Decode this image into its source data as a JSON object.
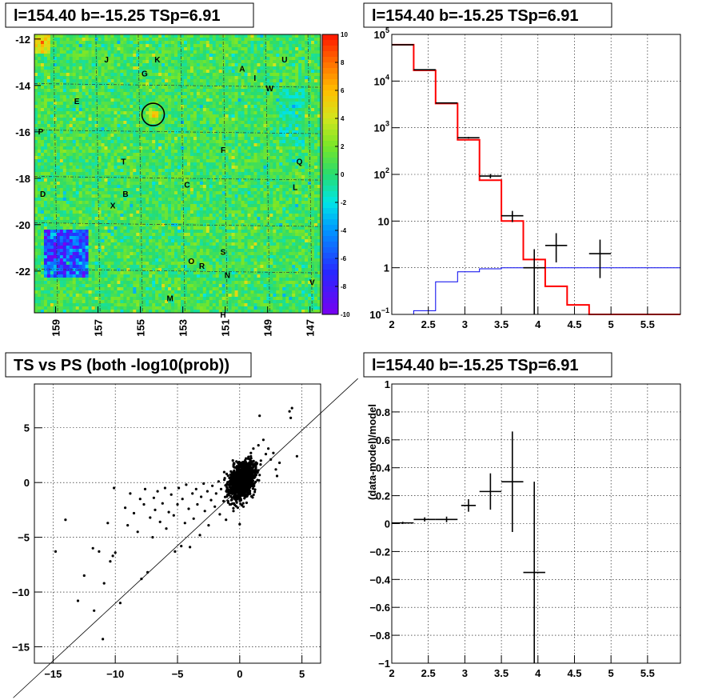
{
  "chart_data": [
    {
      "type": "heatmap",
      "title": "l=154.40 b=-15.25 TSp=6.91",
      "xlim": [
        160,
        146.5
      ],
      "ylim": [
        -23.8,
        -11.8
      ],
      "x_ticks": [
        "159",
        "157",
        "155",
        "153",
        "151",
        "149",
        "147"
      ],
      "y_ticks": [
        "-12",
        "-14",
        "-16",
        "-18",
        "-20",
        "-22"
      ],
      "colorbar_ticks": [
        "10",
        "8",
        "6",
        "4",
        "2",
        "0",
        "-2",
        "-4",
        "-6",
        "-8",
        "-10"
      ],
      "colorbar_range": [
        -10,
        10
      ],
      "marked_source": {
        "l": 154.4,
        "b": -15.25
      },
      "labels": [
        {
          "text": "J",
          "l": 156.6,
          "b": -12.9
        },
        {
          "text": "K",
          "l": 154.2,
          "b": -12.9
        },
        {
          "text": "G",
          "l": 154.8,
          "b": -13.5
        },
        {
          "text": "A",
          "l": 150.2,
          "b": -13.3
        },
        {
          "text": "U",
          "l": 148.2,
          "b": -12.9
        },
        {
          "text": "I",
          "l": 149.6,
          "b": -13.7
        },
        {
          "text": "W",
          "l": 148.9,
          "b": -14.15
        },
        {
          "text": "E",
          "l": 158.0,
          "b": -14.7
        },
        {
          "text": "P",
          "l": 159.7,
          "b": -16.0
        },
        {
          "text": "F",
          "l": 151.1,
          "b": -16.8
        },
        {
          "text": "Q",
          "l": 147.5,
          "b": -17.3
        },
        {
          "text": "T",
          "l": 155.8,
          "b": -17.3
        },
        {
          "text": "C",
          "l": 152.8,
          "b": -18.3
        },
        {
          "text": "L",
          "l": 147.7,
          "b": -18.4
        },
        {
          "text": "D",
          "l": 159.6,
          "b": -18.7
        },
        {
          "text": "B",
          "l": 155.7,
          "b": -18.7
        },
        {
          "text": "X",
          "l": 156.3,
          "b": -19.2
        },
        {
          "text": "S",
          "l": 151.1,
          "b": -21.2
        },
        {
          "text": "O",
          "l": 152.6,
          "b": -21.6
        },
        {
          "text": "R",
          "l": 152.1,
          "b": -21.8
        },
        {
          "text": "N",
          "l": 150.9,
          "b": -22.2
        },
        {
          "text": "V",
          "l": 146.9,
          "b": -22.5
        },
        {
          "text": "M",
          "l": 153.6,
          "b": -23.2
        },
        {
          "text": "H",
          "l": 151.1,
          "b": -23.9
        }
      ]
    },
    {
      "type": "line",
      "title": "l=154.40 b=-15.25 TSp=6.91",
      "xlim": [
        2,
        5.95
      ],
      "ylim": [
        0.1,
        100000
      ],
      "yscale": "log",
      "x_ticks": [
        "2",
        "2.5",
        "3",
        "3.5",
        "4",
        "4.5",
        "5",
        "5.5"
      ],
      "y_ticks": [
        {
          "value": 100000,
          "base": "10",
          "exp": "5"
        },
        {
          "value": 10000,
          "base": "10",
          "exp": "4"
        },
        {
          "value": 1000,
          "base": "10",
          "exp": "3"
        },
        {
          "value": 100,
          "base": "10",
          "exp": "2"
        },
        {
          "value": 10,
          "base": "10",
          "exp": ""
        },
        {
          "value": 1,
          "base": "1",
          "exp": ""
        },
        {
          "value": 0.1,
          "base": "10",
          "exp": "−1"
        }
      ],
      "grid": true,
      "bin_edges": [
        2.0,
        2.3,
        2.6,
        2.9,
        3.2,
        3.5,
        3.8,
        4.1,
        4.4,
        4.7,
        5.0,
        5.3,
        5.6,
        5.95
      ],
      "model_red": [
        60000,
        17000,
        3300,
        550,
        75,
        10,
        1.5,
        0.4,
        0.16,
        0.1,
        0.1,
        0.1,
        0.1
      ],
      "model_blue": [
        0.1,
        0.12,
        0.5,
        0.82,
        0.95,
        1.0,
        1.0,
        1.0,
        1.0,
        1.0,
        1.0,
        1.0,
        1.0
      ],
      "data": [
        {
          "x": 2.15,
          "y": 60000,
          "xerr": 0.15,
          "ylo": 59500,
          "yhi": 60500
        },
        {
          "x": 2.45,
          "y": 17500,
          "xerr": 0.15,
          "ylo": 17300,
          "yhi": 17700
        },
        {
          "x": 2.75,
          "y": 3400,
          "xerr": 0.15,
          "ylo": 3340,
          "yhi": 3460
        },
        {
          "x": 3.05,
          "y": 610,
          "xerr": 0.15,
          "ylo": 585,
          "yhi": 635
        },
        {
          "x": 3.35,
          "y": 92,
          "xerr": 0.15,
          "ylo": 82,
          "yhi": 102
        },
        {
          "x": 3.65,
          "y": 13,
          "xerr": 0.15,
          "ylo": 9.5,
          "yhi": 16.5
        },
        {
          "x": 3.95,
          "y": 1.0,
          "xerr": 0.15,
          "ylo": 0.1,
          "yhi": 2.5
        },
        {
          "x": 4.25,
          "y": 3,
          "xerr": 0.15,
          "ylo": 1.3,
          "yhi": 5.5
        },
        {
          "x": 4.85,
          "y": 2,
          "xerr": 0.15,
          "ylo": 0.6,
          "yhi": 4.0
        }
      ]
    },
    {
      "type": "scatter",
      "title": "TS vs PS (both -log10(prob))",
      "xlim": [
        -16.5,
        6.5
      ],
      "ylim": [
        -16.5,
        9
      ],
      "x_ticks": [
        "−15",
        "−10",
        "−5",
        "0",
        "5"
      ],
      "y_ticks": [
        "5",
        "0",
        "−5",
        "−10",
        "−15"
      ],
      "grid": true,
      "reference_line": "y = x",
      "points": [
        [
          -14.8,
          -6.3
        ],
        [
          -14.0,
          -3.4
        ],
        [
          -13.0,
          -10.8
        ],
        [
          -12.5,
          -8.5
        ],
        [
          -11.8,
          -6.0
        ],
        [
          -11.7,
          -11.7
        ],
        [
          -11.3,
          -6.3
        ],
        [
          -11.0,
          -14.3
        ],
        [
          -10.9,
          -9.2
        ],
        [
          -10.6,
          -3.7
        ],
        [
          -10.4,
          -7.2
        ],
        [
          -10.2,
          -6.7
        ],
        [
          -10.0,
          -6.4
        ],
        [
          -10.1,
          -0.5
        ],
        [
          -9.6,
          -11.0
        ],
        [
          -9.2,
          -2.3
        ],
        [
          -9.0,
          -3.9
        ],
        [
          -8.8,
          -1.0
        ],
        [
          -8.5,
          -2.8
        ],
        [
          -8.2,
          -4.5
        ],
        [
          -8.0,
          -1.5
        ],
        [
          -7.9,
          -8.8
        ],
        [
          -7.7,
          -2.0
        ],
        [
          -7.6,
          -0.6
        ],
        [
          -7.4,
          -8.2
        ],
        [
          -7.2,
          -3.2
        ],
        [
          -7.0,
          -5.0
        ],
        [
          -6.9,
          -1.4
        ],
        [
          -6.8,
          -2.5
        ],
        [
          -6.6,
          -0.8
        ],
        [
          -6.4,
          -3.6
        ],
        [
          -6.2,
          -1.9
        ],
        [
          -6.0,
          -0.5
        ],
        [
          -5.9,
          -4.2
        ],
        [
          -5.7,
          -2.7
        ],
        [
          -5.5,
          -1.1
        ],
        [
          -5.3,
          -3.0
        ],
        [
          -5.2,
          -6.3
        ],
        [
          -5.0,
          -2.0
        ],
        [
          -4.9,
          -0.5
        ],
        [
          -4.7,
          -5.8
        ],
        [
          -4.6,
          -1.5
        ],
        [
          -4.4,
          -3.7
        ],
        [
          -4.3,
          -0.2
        ],
        [
          -4.1,
          -2.4
        ],
        [
          -4.0,
          -5.9
        ],
        [
          -3.8,
          -1.0
        ],
        [
          -3.7,
          -3.3
        ],
        [
          -3.5,
          -0.6
        ],
        [
          -3.4,
          -2.0
        ],
        [
          -3.2,
          -4.8
        ],
        [
          -3.1,
          -1.3
        ],
        [
          -2.9,
          -0.1
        ],
        [
          -2.8,
          -2.6
        ],
        [
          -2.6,
          -0.8
        ],
        [
          -2.5,
          -3.9
        ],
        [
          -2.3,
          -1.6
        ],
        [
          -2.2,
          -0.3
        ],
        [
          -2.0,
          -2.2
        ],
        [
          -1.9,
          -1.0
        ],
        [
          -1.7,
          0.1
        ],
        [
          -1.6,
          -2.9
        ],
        [
          -1.5,
          -0.6
        ],
        [
          -1.3,
          -1.7
        ],
        [
          -1.2,
          0.4
        ],
        [
          -1.1,
          -3.4
        ],
        [
          -1.0,
          -1.2
        ],
        [
          -0.9,
          -0.2
        ],
        [
          -0.8,
          -2.0
        ],
        [
          -0.6,
          0.6
        ],
        [
          -0.5,
          -2.6
        ],
        [
          -0.3,
          -1.5
        ],
        [
          -0.2,
          1.0
        ],
        [
          0.0,
          -3.8
        ],
        [
          0.1,
          1.6
        ],
        [
          0.3,
          -2.2
        ],
        [
          0.5,
          2.2
        ],
        [
          0.7,
          -1.0
        ],
        [
          0.9,
          2.7
        ],
        [
          1.1,
          3.1
        ],
        [
          1.3,
          1.2
        ],
        [
          1.5,
          3.4
        ],
        [
          1.7,
          2.0
        ],
        [
          1.9,
          3.9
        ],
        [
          2.1,
          2.6
        ],
        [
          2.3,
          3.1
        ],
        [
          2.5,
          2.1
        ],
        [
          2.7,
          2.7
        ],
        [
          2.9,
          1.2
        ],
        [
          3.0,
          0.6
        ],
        [
          3.2,
          1.8
        ],
        [
          4.0,
          6.5
        ],
        [
          4.1,
          5.9
        ],
        [
          4.2,
          6.8
        ],
        [
          4.6,
          2.4
        ],
        [
          1.6,
          6.1
        ]
      ],
      "dense_core": {
        "x_mean": 0.2,
        "y_mean": 0.2,
        "x_sd": 0.7,
        "y_sd": 1.1,
        "count": 1200
      }
    },
    {
      "type": "scatter",
      "title": "l=154.40 b=-15.25 TSp=6.91",
      "ylabel": "(data-model)/model",
      "xlim": [
        2,
        5.95
      ],
      "ylim": [
        -1,
        1
      ],
      "x_ticks": [
        "2",
        "2.5",
        "3",
        "3.5",
        "4",
        "4.5",
        "5",
        "5.5"
      ],
      "y_ticks": [
        "1",
        "0.8",
        "0.6",
        "0.4",
        "0.2",
        "0",
        "−0.2",
        "−0.4",
        "−0.6",
        "−0.8",
        "−1"
      ],
      "grid": true,
      "data": [
        {
          "x": 2.15,
          "y": 0.005,
          "xerr": 0.15,
          "yerr": 0.008
        },
        {
          "x": 2.45,
          "y": 0.03,
          "xerr": 0.15,
          "yerr": 0.015
        },
        {
          "x": 2.75,
          "y": 0.03,
          "xerr": 0.15,
          "yerr": 0.02
        },
        {
          "x": 3.05,
          "y": 0.13,
          "xerr": 0.1,
          "yerr": 0.045
        },
        {
          "x": 3.35,
          "y": 0.23,
          "xerr": 0.15,
          "yerr": 0.13
        },
        {
          "x": 3.65,
          "y": 0.3,
          "xerr": 0.15,
          "yerr": 0.36
        },
        {
          "x": 3.95,
          "y": -0.35,
          "xerr": 0.15,
          "ylo": -1.0,
          "yhi": 0.3
        }
      ]
    }
  ]
}
